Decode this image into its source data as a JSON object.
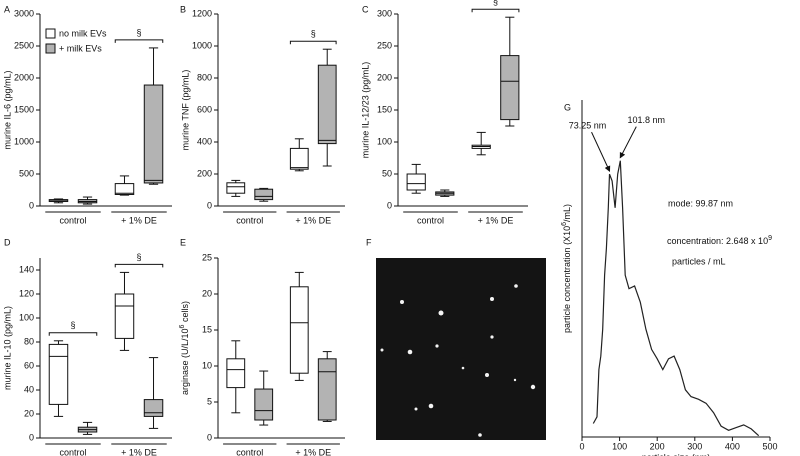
{
  "chart_data": [
    {
      "type": "box",
      "label": "A",
      "ylabel": "murine IL-6 (pg/mL)",
      "categories": [
        "control",
        "+ 1% DE"
      ],
      "ylim": [
        0,
        3000
      ],
      "yticks": [
        0,
        500,
        1000,
        1500,
        2000,
        2500,
        3000
      ],
      "legend": "upper left",
      "significance": [
        null,
        "§"
      ],
      "series": [
        {
          "name": "no milk EVs",
          "color": "#ffffff",
          "values": [
            {
              "min": 50,
              "q1": 70,
              "median": 90,
              "q3": 100,
              "max": 110
            },
            {
              "min": 170,
              "q1": 180,
              "median": 200,
              "q3": 350,
              "max": 470
            }
          ]
        },
        {
          "name": "+ milk EVs",
          "color": "#b3b3b3",
          "values": [
            {
              "min": 30,
              "q1": 50,
              "median": 70,
              "q3": 100,
              "max": 140
            },
            {
              "min": 340,
              "q1": 360,
              "median": 400,
              "q3": 1890,
              "max": 2470
            }
          ]
        }
      ]
    },
    {
      "type": "box",
      "label": "B",
      "ylabel": "murine TNF (pg/mL)",
      "categories": [
        "control",
        "+ 1% DE"
      ],
      "ylim": [
        0,
        1200
      ],
      "yticks": [
        0,
        200,
        400,
        600,
        800,
        1000,
        1200
      ],
      "significance": [
        null,
        "§"
      ],
      "series": [
        {
          "color": "#ffffff",
          "values": [
            {
              "min": 60,
              "q1": 80,
              "median": 120,
              "q3": 145,
              "max": 160
            },
            {
              "min": 220,
              "q1": 230,
              "median": 240,
              "q3": 360,
              "max": 420
            }
          ]
        },
        {
          "color": "#b3b3b3",
          "values": [
            {
              "min": 30,
              "q1": 40,
              "median": 60,
              "q3": 105,
              "max": 110
            },
            {
              "min": 250,
              "q1": 390,
              "median": 410,
              "q3": 880,
              "max": 980
            }
          ]
        }
      ]
    },
    {
      "type": "box",
      "label": "C",
      "ylabel": "murine IL-12/23 (pg/mL)",
      "categories": [
        "control",
        "+ 1% DE"
      ],
      "ylim": [
        0,
        300
      ],
      "yticks": [
        0,
        50,
        100,
        150,
        200,
        250,
        300
      ],
      "significance": [
        null,
        "§"
      ],
      "series": [
        {
          "color": "#ffffff",
          "values": [
            {
              "min": 20,
              "q1": 25,
              "median": 35,
              "q3": 50,
              "max": 65
            },
            {
              "min": 80,
              "q1": 90,
              "median": 93,
              "q3": 95,
              "max": 115
            }
          ]
        },
        {
          "color": "#b3b3b3",
          "values": [
            {
              "min": 15,
              "q1": 17,
              "median": 20,
              "q3": 22,
              "max": 25
            },
            {
              "min": 125,
              "q1": 135,
              "median": 195,
              "q3": 235,
              "max": 295
            }
          ]
        }
      ]
    },
    {
      "type": "box",
      "label": "D",
      "ylabel": "murine IL-10 (pg/mL)",
      "categories": [
        "control",
        "+ 1% DE"
      ],
      "ylim": [
        0,
        150
      ],
      "yticks": [
        0,
        20,
        40,
        60,
        80,
        100,
        120,
        140
      ],
      "significance": [
        "§",
        "§"
      ],
      "series": [
        {
          "color": "#ffffff",
          "values": [
            {
              "min": 18,
              "q1": 28,
              "median": 68,
              "q3": 78,
              "max": 81
            },
            {
              "min": 73,
              "q1": 83,
              "median": 110,
              "q3": 120,
              "max": 138
            }
          ]
        },
        {
          "color": "#b3b3b3",
          "values": [
            {
              "min": 3,
              "q1": 5,
              "median": 7,
              "q3": 9,
              "max": 13
            },
            {
              "min": 8,
              "q1": 18,
              "median": 21,
              "q3": 32,
              "max": 67
            }
          ]
        }
      ]
    },
    {
      "type": "box",
      "label": "E",
      "ylabel": {
        "text": "arginase (U/L/10",
        "sup": "6",
        "after": " cells)"
      },
      "categories": [
        "control",
        "+ 1% DE"
      ],
      "ylim": [
        0,
        25
      ],
      "yticks": [
        0,
        5,
        10,
        15,
        20,
        25
      ],
      "series": [
        {
          "color": "#ffffff",
          "values": [
            {
              "min": 3.5,
              "q1": 7,
              "median": 9.5,
              "q3": 11,
              "max": 13.5
            },
            {
              "min": 8,
              "q1": 9,
              "median": 16,
              "q3": 21,
              "max": 23
            }
          ]
        },
        {
          "color": "#b3b3b3",
          "values": [
            {
              "min": 1.8,
              "q1": 2.5,
              "median": 3.8,
              "q3": 6.8,
              "max": 9.3
            },
            {
              "min": 2.3,
              "q1": 2.5,
              "median": 9.2,
              "q3": 11,
              "max": 12
            }
          ]
        }
      ]
    },
    {
      "type": "image",
      "label": "F"
    },
    {
      "type": "line",
      "label": "G",
      "xlabel": "particle size (nm)",
      "ylabel": {
        "text": "particle concentration (X10",
        "sup": "6",
        "after": "/mL)"
      },
      "xlim": [
        0,
        500
      ],
      "xticks": [
        0,
        100,
        200,
        300,
        400,
        500
      ],
      "ylim": [
        0,
        25
      ],
      "color": "#222222",
      "x": [
        30,
        40,
        45,
        50,
        55,
        60,
        65,
        70,
        73.25,
        80,
        88,
        95,
        101.8,
        108,
        115,
        125,
        140,
        155,
        170,
        185,
        200,
        215,
        230,
        245,
        260,
        275,
        290,
        310,
        330,
        350,
        370,
        390,
        410,
        430,
        450,
        470
      ],
      "values": [
        1,
        1.5,
        5,
        6,
        8,
        12,
        14,
        17,
        19.5,
        19,
        17,
        19.5,
        20.5,
        17,
        12,
        11,
        11.2,
        10,
        8,
        6.5,
        5.8,
        5,
        5.8,
        6,
        5,
        3.5,
        3,
        2.8,
        2.5,
        1.8,
        0.8,
        0.5,
        0.7,
        0.9,
        0.6,
        0.1
      ],
      "peaks": [
        {
          "x": 73.25,
          "label": "73.25 nm"
        },
        {
          "x": 101.8,
          "label": "101.8 nm"
        }
      ],
      "mode": "mode: 99.87 nm",
      "concentration": {
        "text": "concentration: 2.648 x 10",
        "sup": "9"
      },
      "concentration_unit": "particles / mL"
    }
  ]
}
